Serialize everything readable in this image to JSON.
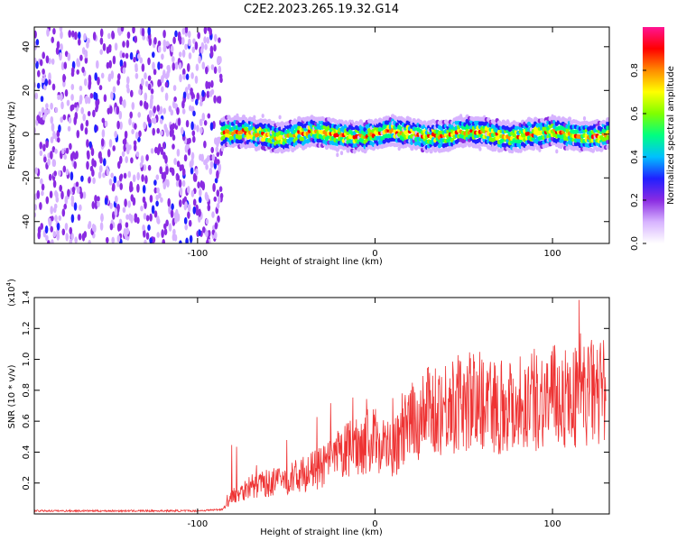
{
  "chart_data": [
    {
      "type": "heatmap",
      "title": "C2E2.2023.265.19.32.G14",
      "xlabel": "Height of straight line (km)",
      "ylabel": "Frequency (Hz)",
      "xlim": [
        -192,
        132
      ],
      "ylim": [
        -50,
        49
      ],
      "xticks": [
        -100,
        0,
        100
      ],
      "yticks": [
        -40,
        -20,
        0,
        20,
        40
      ],
      "colorbar": {
        "label": "Normalized spectral amplitude",
        "range": [
          0.0,
          1.0
        ],
        "ticks": [
          "0.0",
          "0.2",
          "0.4",
          "0.6",
          "0.8"
        ],
        "colors": [
          "#ffffff",
          "#d7b3ff",
          "#8a2be2",
          "#2020ff",
          "#00c0ff",
          "#00ff80",
          "#7fff00",
          "#ffff00",
          "#ff8c00",
          "#ff0000",
          "#ff1493"
        ]
      },
      "regions": [
        {
          "name": "noise",
          "x_range": [
            -192,
            -86
          ],
          "freq_range": [
            -50,
            49
          ],
          "amplitude": 0.15
        },
        {
          "name": "signal-band",
          "x_range": [
            -86,
            132
          ],
          "center_freq": 0,
          "half_width_hz": 6,
          "peak_amplitude": 0.9
        }
      ]
    },
    {
      "type": "line",
      "xlabel": "Height of straight line (km)",
      "ylabel": "SNR (10 * v/v)",
      "y_scale_note": "(x10",
      "y_scale_exponent": "4",
      "y_scale_close": ")",
      "xlim": [
        -192,
        132
      ],
      "ylim": [
        0,
        1.4
      ],
      "xticks": [
        -100,
        0,
        100
      ],
      "yticks": [
        0.2,
        0.4,
        0.6,
        0.8,
        1.0,
        1.2,
        1.4
      ],
      "ytick_labels": [
        "0.2",
        "0.4",
        "0.6",
        "0.8",
        "1.0",
        "1.2",
        "1.4"
      ],
      "series": [
        {
          "name": "SNR",
          "color": "#ee3333",
          "x": [
            -192,
            -160,
            -120,
            -100,
            -86,
            -80,
            -70,
            -60,
            -50,
            -40,
            -30,
            -20,
            -10,
            0,
            5,
            10,
            15,
            20,
            25,
            30,
            40,
            50,
            60,
            70,
            80,
            90,
            100,
            110,
            120,
            130
          ],
          "y": [
            0.02,
            0.02,
            0.02,
            0.02,
            0.03,
            0.12,
            0.18,
            0.2,
            0.22,
            0.26,
            0.3,
            0.38,
            0.45,
            0.48,
            0.45,
            0.4,
            0.5,
            0.58,
            0.62,
            0.66,
            0.7,
            0.72,
            0.74,
            0.7,
            0.72,
            0.74,
            0.76,
            0.75,
            0.78,
            0.8
          ]
        }
      ]
    }
  ]
}
